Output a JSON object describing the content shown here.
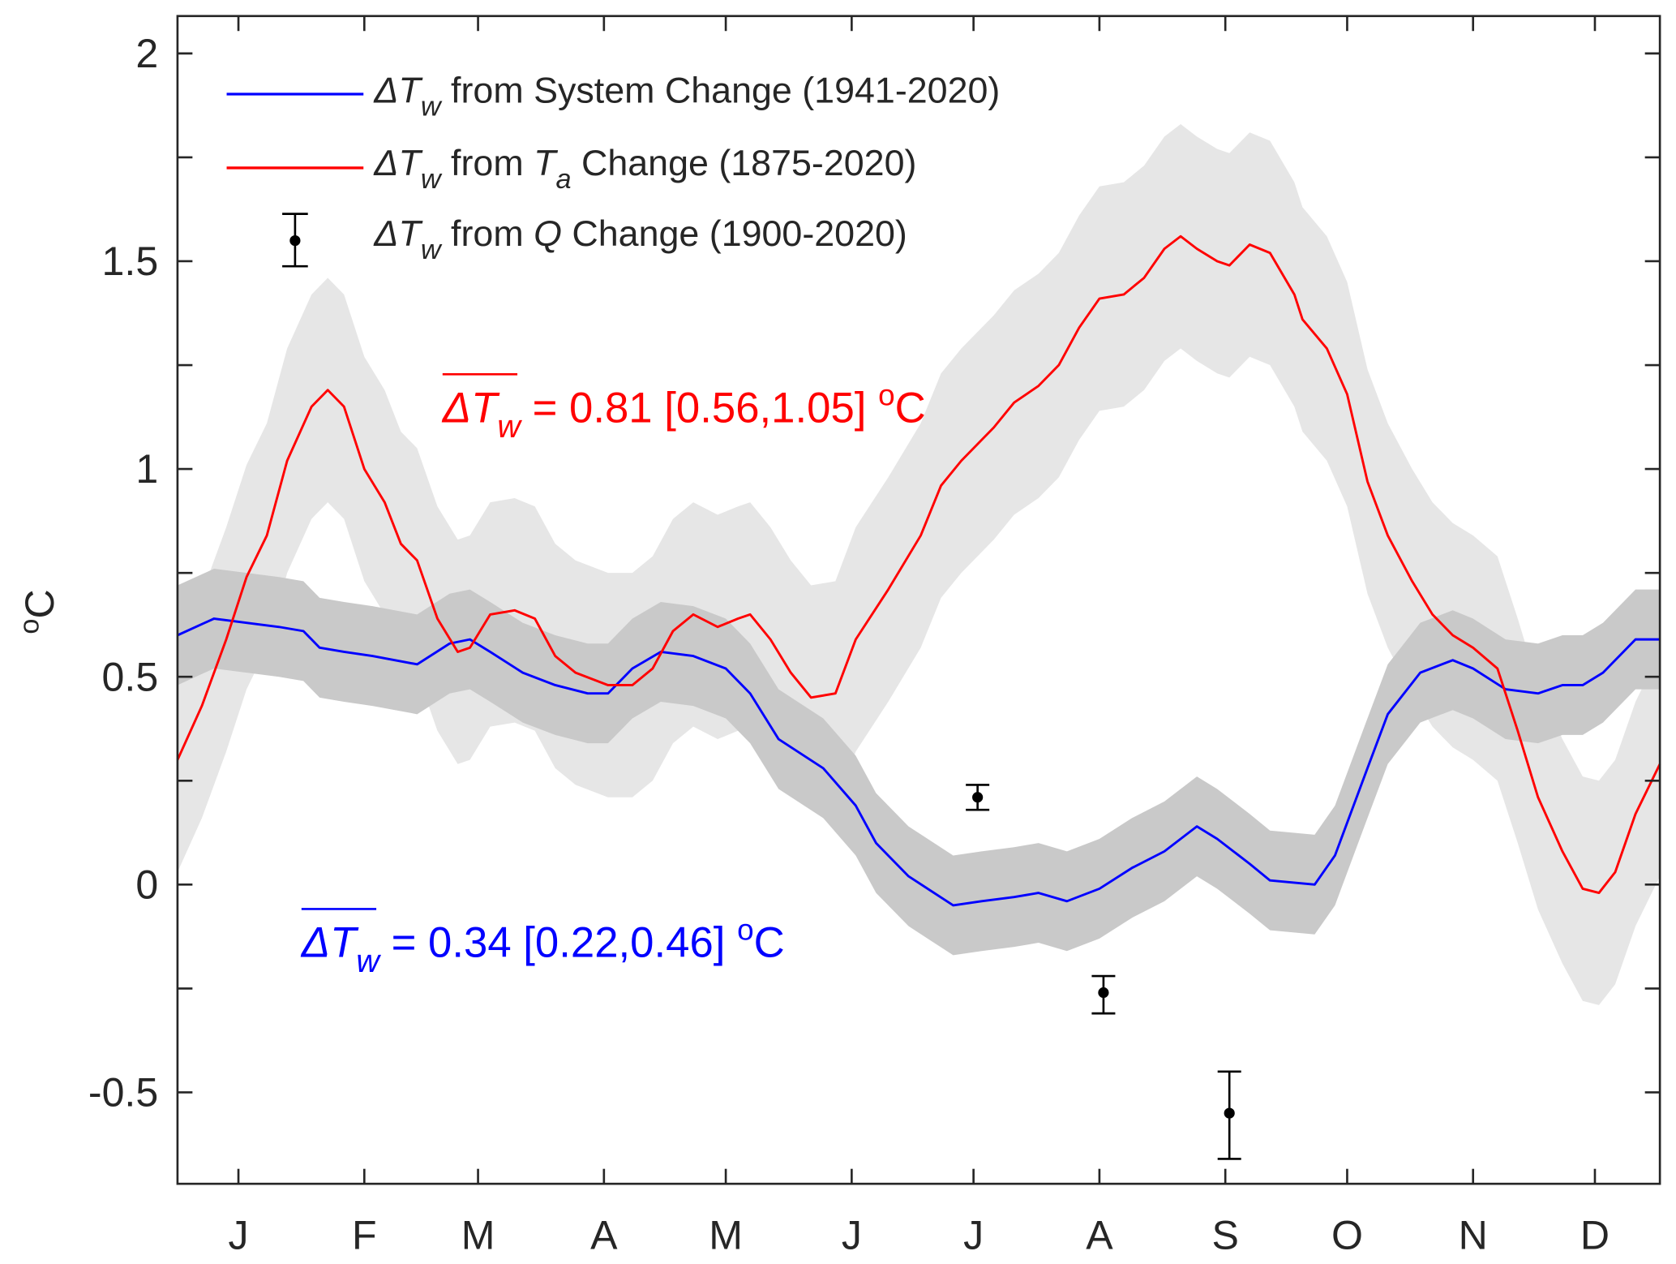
{
  "chart_data": {
    "type": "line",
    "xlabel": "",
    "ylabel_main": "C",
    "ylabel_sup": "o",
    "xlim": [
      0,
      365
    ],
    "ylim": [
      -0.72,
      2.09
    ],
    "x_ticks": [
      15,
      46,
      74,
      105,
      135,
      166,
      196,
      227,
      258,
      288,
      319,
      349
    ],
    "x_tick_labels": [
      "J",
      "F",
      "M",
      "A",
      "M",
      "J",
      "J",
      "A",
      "S",
      "O",
      "N",
      "D"
    ],
    "y_ticks": [
      -0.5,
      -0.25,
      0,
      0.25,
      0.5,
      0.75,
      1,
      1.25,
      1.5,
      1.75,
      2
    ],
    "y_tick_labels": [
      "-0.5",
      "",
      "0",
      "",
      "0.5",
      "",
      "1",
      "",
      "1.5",
      "",
      "2"
    ],
    "grid": false,
    "legend_placement": "top-left",
    "colors": {
      "system": "#0000ff",
      "ta": "#ff0000",
      "q": "#000000",
      "band_ta": "#e6e6e6",
      "band_system": "#c9c9c9"
    },
    "legend": [
      {
        "delta": "ΔT",
        "sub": "w",
        "text": " from System Change (1941-2020)"
      },
      {
        "delta": "ΔT",
        "sub": "w",
        "text1": " from ",
        "var": "T",
        "varsub": "a",
        "text2": " Change (1875-2020)"
      },
      {
        "delta": "ΔT",
        "sub": "w",
        "text1": " from ",
        "var": "Q",
        "text2": " Change (1900-2020)"
      }
    ],
    "series": [
      {
        "name": "ΔTw from System Change (1941-2020)",
        "band_halfwidth": 0.12,
        "points": [
          [
            0,
            0.6
          ],
          [
            9,
            0.64
          ],
          [
            17,
            0.63
          ],
          [
            25,
            0.62
          ],
          [
            31,
            0.61
          ],
          [
            35,
            0.57
          ],
          [
            41,
            0.56
          ],
          [
            48,
            0.55
          ],
          [
            59,
            0.53
          ],
          [
            67,
            0.58
          ],
          [
            72,
            0.59
          ],
          [
            77,
            0.56
          ],
          [
            85,
            0.51
          ],
          [
            93,
            0.48
          ],
          [
            101,
            0.46
          ],
          [
            106,
            0.46
          ],
          [
            112,
            0.52
          ],
          [
            119,
            0.56
          ],
          [
            127,
            0.55
          ],
          [
            135,
            0.52
          ],
          [
            141,
            0.46
          ],
          [
            148,
            0.35
          ],
          [
            159,
            0.28
          ],
          [
            167,
            0.19
          ],
          [
            172,
            0.1
          ],
          [
            180,
            0.02
          ],
          [
            191,
            -0.05
          ],
          [
            198,
            -0.04
          ],
          [
            206,
            -0.03
          ],
          [
            212,
            -0.02
          ],
          [
            219,
            -0.04
          ],
          [
            227,
            -0.01
          ],
          [
            235,
            0.04
          ],
          [
            243,
            0.08
          ],
          [
            251,
            0.14
          ],
          [
            256,
            0.11
          ],
          [
            264,
            0.05
          ],
          [
            269,
            0.01
          ],
          [
            280,
            0.0
          ],
          [
            285,
            0.07
          ],
          [
            293,
            0.28
          ],
          [
            298,
            0.41
          ],
          [
            306,
            0.51
          ],
          [
            314,
            0.54
          ],
          [
            319,
            0.52
          ],
          [
            327,
            0.47
          ],
          [
            335,
            0.46
          ],
          [
            341,
            0.48
          ],
          [
            346,
            0.48
          ],
          [
            351,
            0.51
          ],
          [
            359,
            0.59
          ],
          [
            365,
            0.59
          ]
        ]
      },
      {
        "name": "ΔTw from Ta Change (1875-2020)",
        "band_halfwidth": 0.27,
        "points": [
          [
            0,
            0.3
          ],
          [
            6,
            0.43
          ],
          [
            12,
            0.59
          ],
          [
            17,
            0.74
          ],
          [
            22,
            0.84
          ],
          [
            27,
            1.02
          ],
          [
            33,
            1.15
          ],
          [
            37,
            1.19
          ],
          [
            41,
            1.15
          ],
          [
            46,
            1.0
          ],
          [
            51,
            0.92
          ],
          [
            55,
            0.82
          ],
          [
            59,
            0.78
          ],
          [
            64,
            0.64
          ],
          [
            69,
            0.56
          ],
          [
            72,
            0.57
          ],
          [
            77,
            0.65
          ],
          [
            83,
            0.66
          ],
          [
            88,
            0.64
          ],
          [
            93,
            0.55
          ],
          [
            98,
            0.51
          ],
          [
            106,
            0.48
          ],
          [
            112,
            0.48
          ],
          [
            117,
            0.52
          ],
          [
            122,
            0.61
          ],
          [
            127,
            0.65
          ],
          [
            133,
            0.62
          ],
          [
            138,
            0.64
          ],
          [
            141,
            0.65
          ],
          [
            146,
            0.59
          ],
          [
            151,
            0.51
          ],
          [
            156,
            0.45
          ],
          [
            162,
            0.46
          ],
          [
            167,
            0.59
          ],
          [
            175,
            0.71
          ],
          [
            183,
            0.84
          ],
          [
            188,
            0.96
          ],
          [
            193,
            1.02
          ],
          [
            201,
            1.1
          ],
          [
            206,
            1.16
          ],
          [
            212,
            1.2
          ],
          [
            217,
            1.25
          ],
          [
            222,
            1.34
          ],
          [
            227,
            1.41
          ],
          [
            233,
            1.42
          ],
          [
            238,
            1.46
          ],
          [
            243,
            1.53
          ],
          [
            247,
            1.56
          ],
          [
            251,
            1.53
          ],
          [
            256,
            1.5
          ],
          [
            259,
            1.49
          ],
          [
            264,
            1.54
          ],
          [
            269,
            1.52
          ],
          [
            275,
            1.42
          ],
          [
            277,
            1.36
          ],
          [
            283,
            1.29
          ],
          [
            288,
            1.18
          ],
          [
            293,
            0.97
          ],
          [
            298,
            0.84
          ],
          [
            304,
            0.73
          ],
          [
            309,
            0.65
          ],
          [
            314,
            0.6
          ],
          [
            319,
            0.57
          ],
          [
            325,
            0.52
          ],
          [
            330,
            0.37
          ],
          [
            335,
            0.21
          ],
          [
            341,
            0.08
          ],
          [
            346,
            -0.01
          ],
          [
            350,
            -0.02
          ],
          [
            354,
            0.03
          ],
          [
            359,
            0.17
          ],
          [
            365,
            0.29
          ]
        ]
      },
      {
        "name": "ΔTw from Q Change (1900-2020)",
        "errorbars": [
          {
            "x": 197,
            "y": 0.21,
            "low": 0.18,
            "high": 0.24
          },
          {
            "x": 228,
            "y": -0.26,
            "low": -0.31,
            "high": -0.22
          },
          {
            "x": 259,
            "y": -0.55,
            "low": -0.66,
            "high": -0.45
          }
        ]
      }
    ],
    "annotations": [
      {
        "delta": "ΔT",
        "sub": "w",
        "text": " = 0.81 [0.56,1.05] ",
        "sup": "o",
        "unit": "C",
        "color": "#ff0000"
      },
      {
        "delta": "ΔT",
        "sub": "w",
        "text": " = 0.34 [0.22,0.46] ",
        "sup": "o",
        "unit": "C",
        "color": "#0000ff"
      }
    ]
  }
}
